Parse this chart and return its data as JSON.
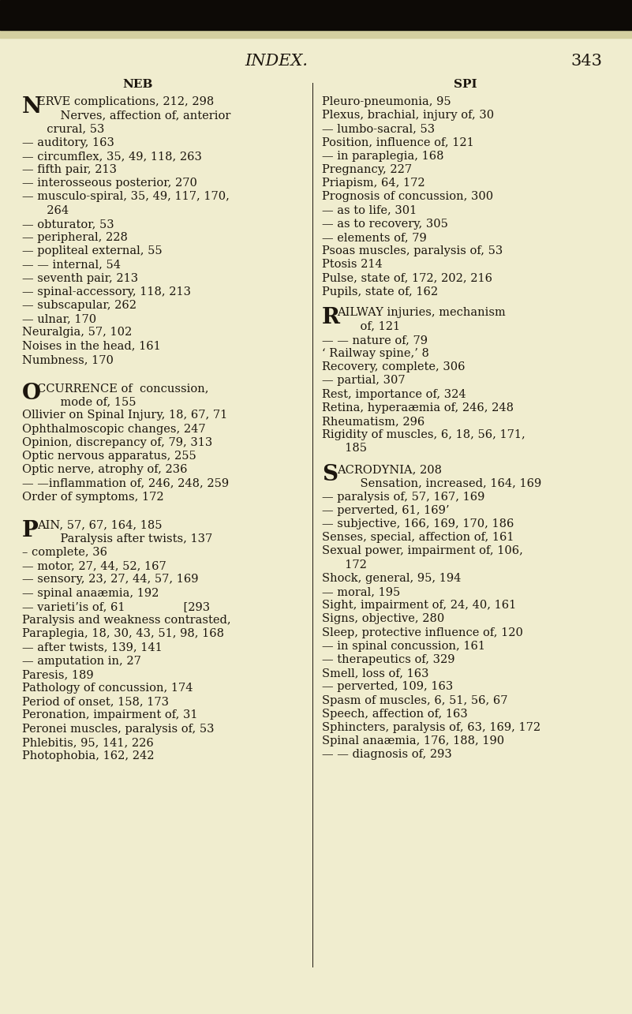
{
  "bg_color": "#f0edcf",
  "text_color": "#1c160e",
  "title": "INDEX.",
  "page_num": "343",
  "header_left": "NEB",
  "header_right": "SPI",
  "left_column": [
    {
      "text": "NERVE complications, 212, 298",
      "drop_cap": "N",
      "rest": "ERVE complications, 212, 298"
    },
    {
      "text": "    Nerves, affection of, anterior",
      "indent": "sub"
    },
    {
      "text": "  crural, 53",
      "indent": "sub2"
    },
    {
      "text": "— auditory, 163"
    },
    {
      "text": "— circumflex, 35, 49, 118, 263"
    },
    {
      "text": "— fifth pair, 213"
    },
    {
      "text": "— interosseous posterior, 270"
    },
    {
      "text": "— musculo-spiral, 35, 49, 117, 170,"
    },
    {
      "text": "  264",
      "indent": "sub2"
    },
    {
      "text": "— obturator, 53"
    },
    {
      "text": "— peripheral, 228"
    },
    {
      "text": "— popliteal external, 55"
    },
    {
      "text": "— — internal, 54"
    },
    {
      "text": "— seventh pair, 213"
    },
    {
      "text": "— spinal-accessory, 118, 213"
    },
    {
      "text": "— subscapular, 262"
    },
    {
      "text": "— ulnar, 170"
    },
    {
      "text": "Neuralgia, 57, 102"
    },
    {
      "text": "Noises in the head, 161"
    },
    {
      "text": "Numbness, 170"
    },
    {
      "text": "",
      "blank": true
    },
    {
      "text": "",
      "blank": true
    },
    {
      "text": "OCCURRENCE of  concussion,",
      "drop_cap": "O",
      "rest": "CCURRENCE of  concussion,"
    },
    {
      "text": "    mode of, 155",
      "indent": "sub"
    },
    {
      "text": "Ollivier on Spinal Injury, 18, 67, 71"
    },
    {
      "text": "Ophthalmoscopic changes, 247"
    },
    {
      "text": "Opinion, discrepancy of, 79, 313"
    },
    {
      "text": "Optic nervous apparatus, 255"
    },
    {
      "text": "Optic nerve, atrophy of, 236"
    },
    {
      "text": "— —inflammation of, 246, 248, 259"
    },
    {
      "text": "Order of symptoms, 172"
    },
    {
      "text": "",
      "blank": true
    },
    {
      "text": "",
      "blank": true
    },
    {
      "text": "PAIN, 57, 67, 164, 185",
      "drop_cap": "P",
      "rest": "AIN, 57, 67, 164, 185"
    },
    {
      "text": "    Paralysis after twists, 137",
      "indent": "sub"
    },
    {
      "text": "– complete, 36"
    },
    {
      "text": "— motor, 27, 44, 52, 167"
    },
    {
      "text": "— sensory, 23, 27, 44, 57, 169"
    },
    {
      "text": "— spinal anaæmia, 192"
    },
    {
      "text": "— varieti’is of, 61                [293"
    },
    {
      "text": "Paralysis and weakness contrasted,"
    },
    {
      "text": "Paraplegia, 18, 30, 43, 51, 98, 168"
    },
    {
      "text": "— after twists, 139, 141"
    },
    {
      "text": "— amputation in, 27"
    },
    {
      "text": "Paresis, 189"
    },
    {
      "text": "Pathology of concussion, 174"
    },
    {
      "text": "Period of onset, 158, 173"
    },
    {
      "text": "Peronation, impairment of, 31"
    },
    {
      "text": "Peronei muscles, paralysis of, 53"
    },
    {
      "text": "Phlebitis, 95, 141, 226"
    },
    {
      "text": "Photophobia, 162, 242"
    }
  ],
  "right_column": [
    {
      "text": "Pleuro-pneumonia, 95"
    },
    {
      "text": "Plexus, brachial, injury of, 30"
    },
    {
      "text": "— lumbo-sacral, 53"
    },
    {
      "text": "Position, influence of, 121"
    },
    {
      "text": "— in paraplegia, 168"
    },
    {
      "text": "Pregnancy, 227"
    },
    {
      "text": "Priapism, 64, 172"
    },
    {
      "text": "Prognosis of concussion, 300"
    },
    {
      "text": "— as to life, 301"
    },
    {
      "text": "— as to recovery, 305"
    },
    {
      "text": "— elements of, 79"
    },
    {
      "text": "Psoas muscles, paralysis of, 53"
    },
    {
      "text": "Ptosis 214"
    },
    {
      "text": "Pulse, state of, 172, 202, 216"
    },
    {
      "text": "Pupils, state of, 162"
    },
    {
      "text": "",
      "blank": true
    },
    {
      "text": "RAILWAY injuries, mechanism",
      "drop_cap": "R",
      "rest": "AILWAY injuries, mechanism"
    },
    {
      "text": "    of, 121",
      "indent": "sub"
    },
    {
      "text": "— — nature of, 79"
    },
    {
      "text": "‘ Railway spine,’ 8"
    },
    {
      "text": "Recovery, complete, 306"
    },
    {
      "text": "— partial, 307"
    },
    {
      "text": "Rest, importance of, 324"
    },
    {
      "text": "Retina, hyperaæmia of, 246, 248"
    },
    {
      "text": "Rheumatism, 296"
    },
    {
      "text": "Rigidity of muscles, 6, 18, 56, 171,"
    },
    {
      "text": "  185",
      "indent": "sub2"
    },
    {
      "text": "",
      "blank": true
    },
    {
      "text": "SACRODYNIA, 208",
      "drop_cap": "S",
      "rest": "ACRODYNIA, 208"
    },
    {
      "text": "    Sensation, increased, 164, 169",
      "indent": "sub"
    },
    {
      "text": "— paralysis of, 57, 167, 169"
    },
    {
      "text": "— perverted, 61, 169’"
    },
    {
      "text": "— subjective, 166, 169, 170, 186"
    },
    {
      "text": "Senses, special, affection of, 161"
    },
    {
      "text": "Sexual power, impairment of, 106,"
    },
    {
      "text": "  172",
      "indent": "sub2"
    },
    {
      "text": "Shock, general, 95, 194"
    },
    {
      "text": "— moral, 195"
    },
    {
      "text": "Sight, impairment of, 24, 40, 161"
    },
    {
      "text": "Signs, objective, 280"
    },
    {
      "text": "Sleep, protective influence of, 120"
    },
    {
      "text": "— in spinal concussion, 161"
    },
    {
      "text": "— therapeutics of, 329"
    },
    {
      "text": "Smell, loss of, 163"
    },
    {
      "text": "— perverted, 109, 163"
    },
    {
      "text": "Spasm of muscles, 6, 51, 56, 67"
    },
    {
      "text": "Speech, affection of, 163"
    },
    {
      "text": "Sphincters, paralysis of, 63, 169, 172"
    },
    {
      "text": "Spinal anaæmia, 176, 188, 190"
    },
    {
      "text": "— — diagnosis of, 293"
    }
  ]
}
